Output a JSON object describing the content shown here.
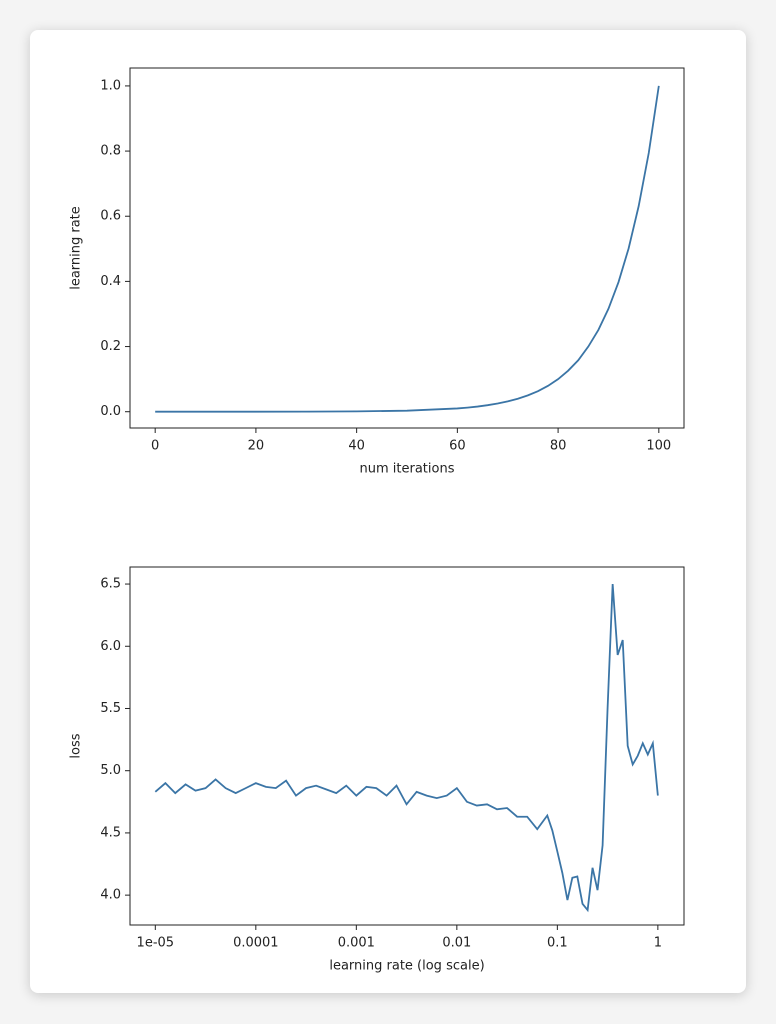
{
  "chart_data": [
    {
      "type": "line",
      "xlabel": "num iterations",
      "ylabel": "learning rate",
      "x": [
        0,
        10,
        20,
        30,
        40,
        50,
        60,
        62,
        64,
        66,
        68,
        70,
        72,
        74,
        76,
        78,
        80,
        82,
        84,
        86,
        88,
        90,
        92,
        94,
        96,
        98,
        100
      ],
      "series": [
        {
          "color": "#3b75a6",
          "values": [
            1e-05,
            3.16e-05,
            0.0001,
            0.000316,
            0.001,
            0.00316,
            0.01,
            0.0126,
            0.0158,
            0.02,
            0.0251,
            0.0316,
            0.0398,
            0.0501,
            0.0631,
            0.0794,
            0.1,
            0.126,
            0.158,
            0.2,
            0.251,
            0.316,
            0.398,
            0.501,
            0.631,
            0.794,
            1.0
          ]
        }
      ],
      "xlim": [
        -5,
        105
      ],
      "xticks": [
        0,
        20,
        40,
        60,
        80,
        100
      ],
      "ylim": [
        -0.05,
        1.055
      ],
      "yticks": [
        {
          "value": 0,
          "label": "0.0"
        },
        {
          "value": 0.2,
          "label": "0.2"
        },
        {
          "value": 0.4,
          "label": "0.4"
        },
        {
          "value": 0.6,
          "label": "0.6"
        },
        {
          "value": 0.8,
          "label": "0.8"
        },
        {
          "value": 1,
          "label": "1.0"
        }
      ],
      "grid": false
    },
    {
      "type": "line",
      "xlabel": "learning rate (log scale)",
      "ylabel": "loss",
      "xscale": "log",
      "x": [
        1e-05,
        1.26e-05,
        1.58e-05,
        2e-05,
        2.51e-05,
        3.16e-05,
        3.98e-05,
        5.01e-05,
        6.31e-05,
        7.94e-05,
        0.0001,
        0.000126,
        0.000158,
        0.0002,
        0.000251,
        0.000316,
        0.000398,
        0.000501,
        0.000631,
        0.000794,
        0.001,
        0.00126,
        0.00158,
        0.002,
        0.00251,
        0.00316,
        0.00398,
        0.00501,
        0.00631,
        0.00794,
        0.01,
        0.0126,
        0.0158,
        0.02,
        0.0251,
        0.0316,
        0.0398,
        0.0501,
        0.0631,
        0.0794,
        0.0891,
        0.1,
        0.112,
        0.126,
        0.141,
        0.158,
        0.178,
        0.2,
        0.224,
        0.251,
        0.282,
        0.316,
        0.355,
        0.398,
        0.447,
        0.501,
        0.562,
        0.631,
        0.708,
        0.794,
        0.891,
        1.0
      ],
      "series": [
        {
          "color": "#3b75a6",
          "values": [
            4.83,
            4.9,
            4.82,
            4.89,
            4.84,
            4.86,
            4.93,
            4.86,
            4.82,
            4.86,
            4.9,
            4.87,
            4.86,
            4.92,
            4.8,
            4.86,
            4.88,
            4.85,
            4.82,
            4.88,
            4.8,
            4.87,
            4.86,
            4.8,
            4.88,
            4.73,
            4.83,
            4.8,
            4.78,
            4.8,
            4.86,
            4.75,
            4.72,
            4.73,
            4.69,
            4.7,
            4.63,
            4.63,
            4.53,
            4.64,
            4.52,
            4.35,
            4.18,
            3.96,
            4.14,
            4.15,
            3.93,
            3.88,
            4.22,
            4.04,
            4.4,
            5.5,
            6.5,
            5.93,
            6.05,
            5.2,
            5.05,
            5.12,
            5.22,
            5.13,
            5.22,
            4.8
          ]
        }
      ],
      "xlim": [
        5.6e-06,
        1.82
      ],
      "xticks": [
        {
          "value": 1e-05,
          "label": "1e-05"
        },
        0.0001,
        0.001,
        0.01,
        0.1,
        1
      ],
      "ylim": [
        3.76,
        6.637
      ],
      "yticks": [
        {
          "value": 4,
          "label": "4.0"
        },
        4.5,
        {
          "value": 5,
          "label": "5.0"
        },
        5.5,
        {
          "value": 6,
          "label": "6.0"
        },
        6.5
      ],
      "grid": false
    }
  ]
}
